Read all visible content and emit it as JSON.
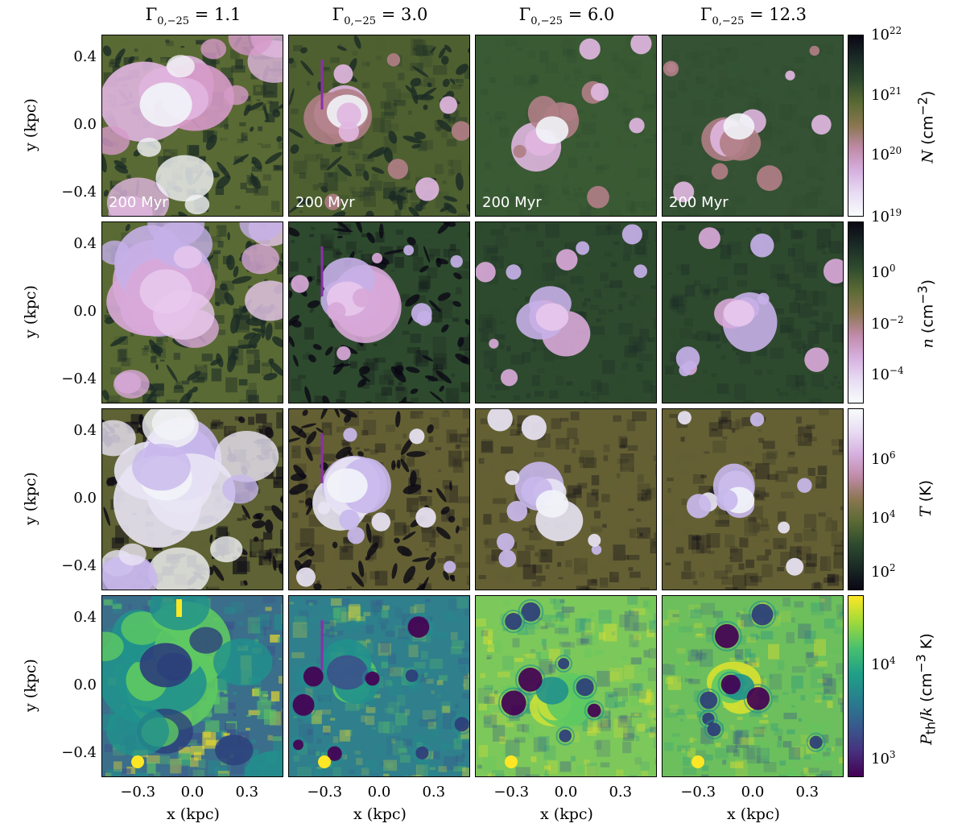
{
  "column_titles": [
    "Γ0,−25 = 1.1",
    "Γ0,−25 = 3.0",
    "Γ0,−25 = 6.0",
    "Γ0,−25 = 12.3"
  ],
  "column_title_parts": [
    {
      "sub": "0,−25",
      "val": " = 1.1"
    },
    {
      "sub": "0,−25",
      "val": " = 3.0"
    },
    {
      "sub": "0,−25",
      "val": " = 6.0"
    },
    {
      "sub": "0,−25",
      "val": " = 12.3"
    }
  ],
  "time_label": "200 Myr",
  "axes": {
    "ylabel": "y  (kpc)",
    "xlabel": "x  (kpc)",
    "yticks": [
      "0.4",
      "0.0",
      "−0.4"
    ],
    "xticks": [
      "−0.3",
      "0.0",
      "0.3"
    ]
  },
  "colorbars": [
    {
      "label": "N (cm−2)",
      "ticks": [
        "10^22",
        "10^21",
        "10^20",
        "10^19"
      ],
      "scale": "log",
      "range": [
        1e+19,
        1e+22
      ]
    },
    {
      "label": "n (cm−3)",
      "ticks": [
        "10^0",
        "10^−2",
        "10^−4"
      ],
      "scale": "log"
    },
    {
      "label": "T (K)",
      "ticks": [
        "10^6",
        "10^4",
        "10^2"
      ],
      "scale": "log"
    },
    {
      "label": "Pth/k (cm−3 K)",
      "ticks": [
        "10^4",
        "10^3"
      ],
      "scale": "log"
    }
  ],
  "colors": {
    "cubehelix": [
      "#0a0714",
      "#1a2a26",
      "#2e4a2e",
      "#5a6a34",
      "#7a6a44",
      "#b07e86",
      "#d69ac8",
      "#e8c8ec",
      "#f2f4f8"
    ],
    "viridis": [
      "#440154",
      "#3b528b",
      "#21918c",
      "#5ec962",
      "#fde725"
    ],
    "vertical_line": "#8b2fa8"
  },
  "chart_data": {
    "type": "heatmap",
    "panels": "4x4 grid of projected maps",
    "rows": [
      "N (cm−2)",
      "n (cm−3)",
      "T (K)",
      "Pth/k (cm−3 K)"
    ],
    "columns": [
      "Γ0,−25 = 1.1",
      "Γ0,−25 = 3.0",
      "Γ0,−25 = 6.0",
      "Γ0,−25 = 12.3"
    ],
    "xlim": [
      -0.5,
      0.5
    ],
    "ylim": [
      -0.5,
      0.5
    ],
    "x_ticks": [
      -0.3,
      0.0,
      0.3
    ],
    "y_ticks": [
      -0.4,
      0.0,
      0.4
    ]
  }
}
